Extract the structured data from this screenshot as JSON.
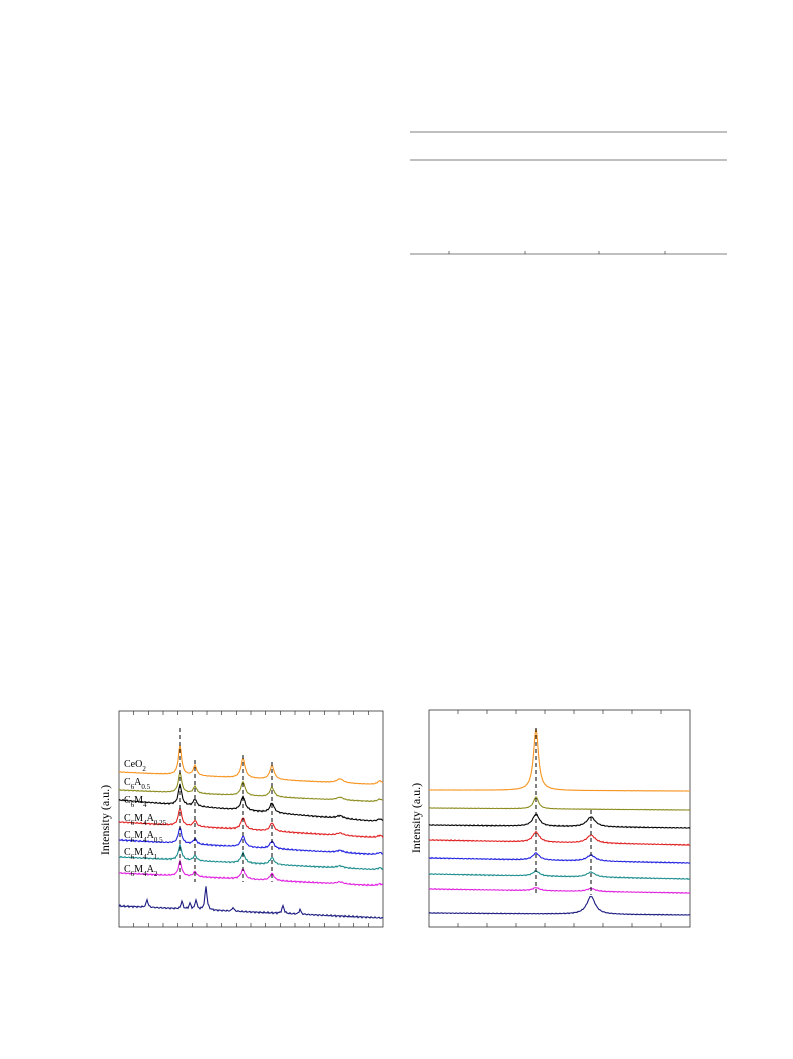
{
  "figure": {
    "left_panel": {
      "y_label": "Intensity (a.u.)",
      "legend": [
        [
          "CeO",
          "2"
        ],
        [
          "C",
          "6",
          "A",
          "0.5"
        ],
        [
          "C",
          "6",
          "M",
          "4"
        ],
        [
          "C",
          "6",
          "M",
          "4",
          "A",
          "0.25"
        ],
        [
          "C",
          "6",
          "M",
          "4",
          "A",
          "0.5"
        ],
        [
          "C",
          "6",
          "M",
          "4",
          "A",
          "1"
        ],
        [
          "C",
          "6",
          "M",
          "4",
          "A",
          "2"
        ]
      ]
    },
    "right_panel": {
      "y_label": "Intensity (a.u.)"
    }
  }
}
